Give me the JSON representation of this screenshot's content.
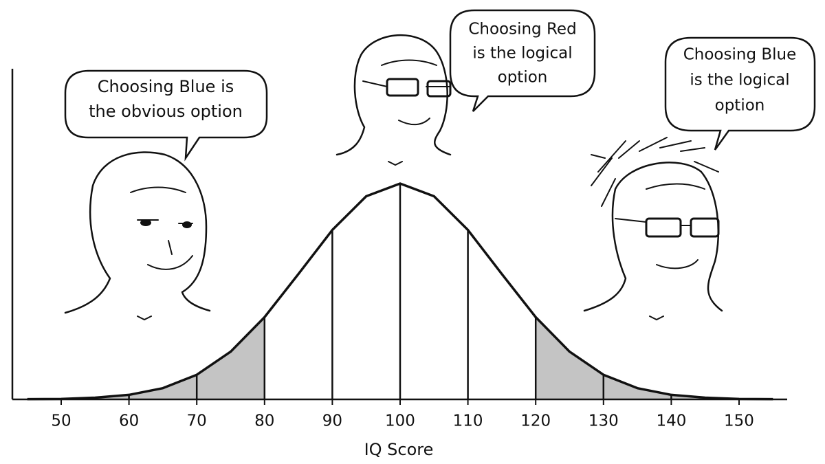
{
  "chart_data": {
    "type": "bell",
    "x": [
      45,
      50,
      55,
      60,
      65,
      70,
      75,
      80,
      85,
      90,
      95,
      100,
      105,
      110,
      115,
      120,
      125,
      130,
      135,
      140,
      145,
      150,
      155
    ],
    "values": [
      0.1,
      0.2,
      0.8,
      2.1,
      5.2,
      11.4,
      22.1,
      38.1,
      58.1,
      78.5,
      94.1,
      100,
      94.1,
      78.5,
      58.1,
      38.1,
      22.1,
      11.4,
      5.2,
      2.1,
      0.8,
      0.2,
      0.1
    ],
    "xlim": [
      42.8,
      157.1
    ],
    "ylim": [
      0,
      100
    ],
    "xticks": [
      50,
      60,
      70,
      80,
      90,
      100,
      110,
      120,
      130,
      140,
      150
    ],
    "xlabel": "IQ Score",
    "dividers": [
      60,
      70,
      80,
      90,
      100,
      110,
      120,
      130,
      140
    ],
    "shaded_ranges": [
      [
        45,
        80
      ],
      [
        120,
        155
      ]
    ],
    "shade_color": "#c4c4c4",
    "annotations": [
      {
        "lines": [
          "Choosing Blue is",
          "the obvious option"
        ]
      },
      {
        "lines": [
          "Choosing Red",
          "is the logical",
          "option"
        ]
      },
      {
        "lines": [
          "Choosing Blue",
          "is the logical",
          "option"
        ]
      }
    ]
  }
}
